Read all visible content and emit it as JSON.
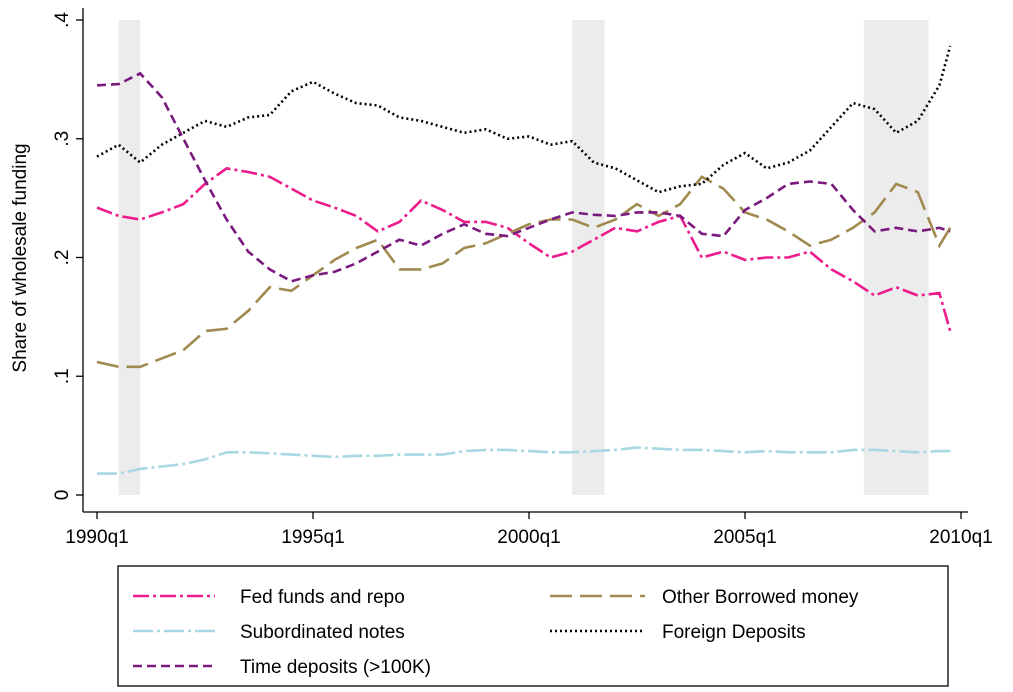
{
  "chart_data": {
    "type": "line",
    "y_label": "Share of wholesale funding",
    "x": [
      1990,
      1990.5,
      1991,
      1991.5,
      1992,
      1992.5,
      1993,
      1993.5,
      1994,
      1994.5,
      1995,
      1995.5,
      1996,
      1996.5,
      1997,
      1997.5,
      1998,
      1998.5,
      1999,
      1999.5,
      2000,
      2000.5,
      2001,
      2001.5,
      2002,
      2002.5,
      2003,
      2003.5,
      2004,
      2004.5,
      2005,
      2005.5,
      2006,
      2006.5,
      2007,
      2007.5,
      2008,
      2008.5,
      2009,
      2009.5,
      2009.75
    ],
    "xlim": [
      1990,
      2010
    ],
    "xticks": [
      {
        "value": 1990,
        "label": "1990q1"
      },
      {
        "value": 1995,
        "label": "1995q1"
      },
      {
        "value": 2000,
        "label": "2000q1"
      },
      {
        "value": 2005,
        "label": "2005q1"
      },
      {
        "value": 2010,
        "label": "2010q1"
      }
    ],
    "ylim": [
      0,
      0.4
    ],
    "yticks": [
      0,
      {
        "value": 0.1,
        "label": ".1"
      },
      {
        "value": 0.2,
        "label": ".2"
      },
      {
        "value": 0.3,
        "label": ".3"
      },
      {
        "value": 0.4,
        "label": ".4"
      }
    ],
    "shaded_periods": [
      [
        1990.5,
        1991
      ],
      [
        2001,
        2001.75
      ],
      [
        2007.75,
        2009.25
      ]
    ],
    "shade_color": "#ececec",
    "series": [
      {
        "name": "Fed funds and repo",
        "color": "#ec1c8c",
        "dash": "16 4 3 4",
        "values": [
          0.242,
          0.235,
          0.232,
          0.238,
          0.245,
          0.262,
          0.275,
          0.272,
          0.268,
          0.258,
          0.248,
          0.242,
          0.235,
          0.222,
          0.23,
          0.248,
          0.24,
          0.23,
          0.23,
          0.225,
          0.212,
          0.2,
          0.205,
          0.215,
          0.225,
          0.222,
          0.23,
          0.235,
          0.2,
          0.205,
          0.198,
          0.2,
          0.2,
          0.205,
          0.19,
          0.18,
          0.168,
          0.175,
          0.168,
          0.17,
          0.138
        ]
      },
      {
        "name": "Other Borrowed money",
        "color": "#a08a50",
        "dash": "22 8",
        "values": [
          0.112,
          0.108,
          0.108,
          0.115,
          0.122,
          0.138,
          0.14,
          0.155,
          0.175,
          0.172,
          0.185,
          0.198,
          0.208,
          0.215,
          0.19,
          0.19,
          0.195,
          0.208,
          0.212,
          0.22,
          0.228,
          0.232,
          0.232,
          0.225,
          0.232,
          0.245,
          0.235,
          0.245,
          0.268,
          0.258,
          0.238,
          0.232,
          0.222,
          0.21,
          0.215,
          0.225,
          0.238,
          0.262,
          0.255,
          0.21,
          0.225
        ]
      },
      {
        "name": "Subordinated notes",
        "color": "#a8d8e2",
        "dash": "20 4 3 4",
        "values": [
          0.018,
          0.018,
          0.022,
          0.024,
          0.026,
          0.03,
          0.036,
          0.036,
          0.035,
          0.034,
          0.033,
          0.032,
          0.033,
          0.033,
          0.034,
          0.034,
          0.034,
          0.037,
          0.038,
          0.038,
          0.037,
          0.036,
          0.036,
          0.037,
          0.038,
          0.04,
          0.039,
          0.038,
          0.038,
          0.037,
          0.036,
          0.037,
          0.036,
          0.036,
          0.036,
          0.038,
          0.038,
          0.037,
          0.036,
          0.037,
          0.037
        ]
      },
      {
        "name": "Foreign Deposits",
        "color": "#000000",
        "dash": "2 3",
        "values": [
          0.285,
          0.295,
          0.28,
          0.295,
          0.305,
          0.315,
          0.31,
          0.318,
          0.32,
          0.34,
          0.348,
          0.338,
          0.33,
          0.328,
          0.318,
          0.315,
          0.31,
          0.305,
          0.308,
          0.3,
          0.302,
          0.295,
          0.298,
          0.28,
          0.275,
          0.265,
          0.255,
          0.26,
          0.262,
          0.278,
          0.288,
          0.275,
          0.28,
          0.29,
          0.31,
          0.33,
          0.325,
          0.305,
          0.315,
          0.345,
          0.378
        ]
      },
      {
        "name": "Time deposits (>100K)",
        "color": "#7a1a7e",
        "dash": "9 5",
        "values": [
          0.345,
          0.346,
          0.355,
          0.335,
          0.3,
          0.265,
          0.232,
          0.205,
          0.19,
          0.18,
          0.185,
          0.188,
          0.195,
          0.205,
          0.215,
          0.21,
          0.22,
          0.228,
          0.22,
          0.218,
          0.225,
          0.232,
          0.238,
          0.236,
          0.235,
          0.238,
          0.238,
          0.235,
          0.22,
          0.218,
          0.24,
          0.25,
          0.262,
          0.264,
          0.262,
          0.24,
          0.222,
          0.225,
          0.222,
          0.225,
          0.222
        ]
      }
    ]
  }
}
